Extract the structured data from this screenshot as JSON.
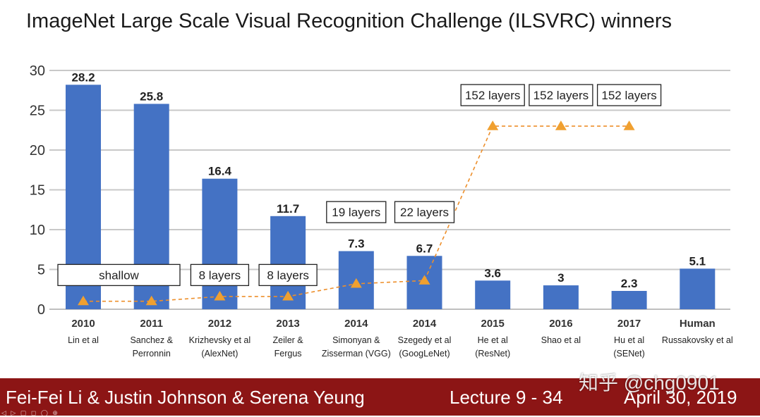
{
  "chart_data": {
    "type": "bar",
    "title": "ImageNet Large Scale Visual Recognition Challenge (ILSVRC) winners",
    "xlabel": "",
    "ylabel": "",
    "ylim": [
      0,
      30
    ],
    "yticks": [
      "0",
      "5",
      "10",
      "15",
      "20",
      "25",
      "30"
    ],
    "grid": true,
    "bar_color": "#4472c4",
    "line_color": "#ed8f2b",
    "categories": [
      {
        "year": "2010",
        "name": "Lin et al"
      },
      {
        "year": "2011",
        "name": "Sanchez &\nPerronnin"
      },
      {
        "year": "2012",
        "name": "Krizhevsky et al\n(AlexNet)"
      },
      {
        "year": "2013",
        "name": "Zeiler &\nFergus"
      },
      {
        "year": "2014",
        "name": "Simonyan &\nZisserman (VGG)"
      },
      {
        "year": "2014",
        "name": "Szegedy et al\n(GoogLeNet)"
      },
      {
        "year": "2015",
        "name": "He et al\n(ResNet)"
      },
      {
        "year": "2016",
        "name": "Shao et al"
      },
      {
        "year": "2017",
        "name": "Hu et al\n(SENet)"
      },
      {
        "year": "Human",
        "name": "Russakovsky et al"
      }
    ],
    "values": [
      28.2,
      25.8,
      16.4,
      11.7,
      7.3,
      6.7,
      3.6,
      3,
      2.3,
      5.1
    ],
    "value_labels": [
      "28.2",
      "25.8",
      "16.4",
      "11.7",
      "7.3",
      "6.7",
      "3.6",
      "3",
      "2.3",
      "5.1"
    ],
    "depth_series": {
      "points": [
        {
          "index": 0,
          "y": 1
        },
        {
          "index": 1,
          "y": 1
        },
        {
          "index": 2,
          "y": 1.6
        },
        {
          "index": 3,
          "y": 1.6
        },
        {
          "index": 4,
          "y": 3.2
        },
        {
          "index": 5,
          "y": 3.6
        },
        {
          "index": 6,
          "y": 23
        },
        {
          "index": 7,
          "y": 23
        },
        {
          "index": 8,
          "y": 23
        }
      ]
    },
    "depth_labels": [
      {
        "text": "shallow",
        "from": 0,
        "to": 1,
        "y": 4.3
      },
      {
        "text": "8 layers",
        "from": 2,
        "to": 2,
        "y": 4.3
      },
      {
        "text": "8 layers",
        "from": 3,
        "to": 3,
        "y": 4.3
      },
      {
        "text": "19 layers",
        "from": 4,
        "to": 4,
        "y": 12.2
      },
      {
        "text": "22 layers",
        "from": 5,
        "to": 5,
        "y": 12.2
      },
      {
        "text": "152 layers",
        "from": 6,
        "to": 6,
        "y": 26.9
      },
      {
        "text": "152 layers",
        "from": 7,
        "to": 7,
        "y": 26.9
      },
      {
        "text": "152 layers",
        "from": 8,
        "to": 8,
        "y": 26.9
      }
    ]
  },
  "footer": {
    "authors": "Fei-Fei Li & Justin Johnson & Serena Yeung",
    "lecture": "Lecture 9 -   34",
    "date": "April 30, 2019",
    "background": "#8c1515",
    "controls": "◁ ▷ ▢ ◻ ◯ ⊕"
  },
  "watermark": "知乎 @chg0901"
}
